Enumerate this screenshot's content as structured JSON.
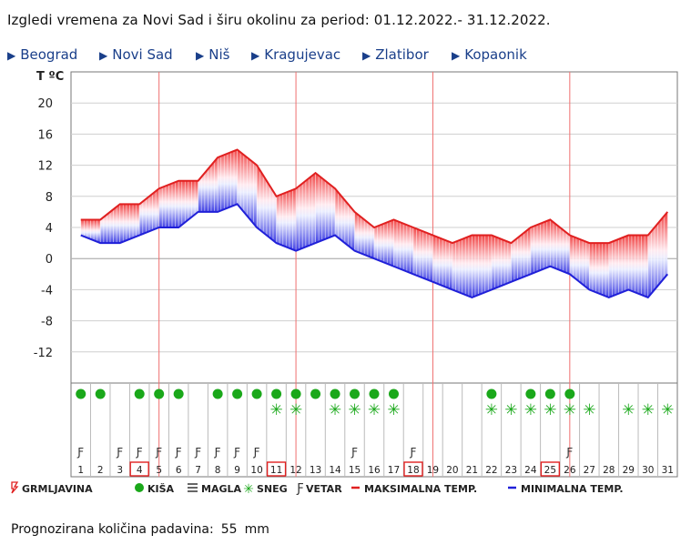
{
  "header": {
    "title": "Izgledi vremena za Novi Sad i širu okolinu za period: 01.12.2022.- 31.12.2022."
  },
  "nav": {
    "items": [
      {
        "label": "Beograd"
      },
      {
        "label": "Novi Sad"
      },
      {
        "label": "Niš"
      },
      {
        "label": "Kragujevac"
      },
      {
        "label": "Zlatibor"
      },
      {
        "label": "Kopaonik"
      }
    ]
  },
  "colors": {
    "max": "#e02020",
    "min": "#2020d8",
    "rain": "#1aa81a",
    "snow": "#1aa81a",
    "grid": "#777777",
    "sunday_box": "#e02020",
    "week_line": "#f07070"
  },
  "chart_data": {
    "type": "line",
    "title": "",
    "ylabel": "T ºC",
    "ylim": [
      -16,
      24
    ],
    "yticks": [
      20,
      16,
      12,
      8,
      4,
      0,
      -4,
      -8,
      -12
    ],
    "x": [
      1,
      2,
      3,
      4,
      5,
      6,
      7,
      8,
      9,
      10,
      11,
      12,
      13,
      14,
      15,
      16,
      17,
      18,
      19,
      20,
      21,
      22,
      23,
      24,
      25,
      26,
      27,
      28,
      29,
      30,
      31
    ],
    "series": [
      {
        "name": "MAKSIMALNA TEMP.",
        "values": [
          5,
          5,
          7,
          7,
          9,
          10,
          10,
          13,
          14,
          12,
          8,
          9,
          11,
          9,
          6,
          4,
          5,
          4,
          3,
          2,
          3,
          3,
          2,
          4,
          5,
          3,
          2,
          2,
          3,
          3,
          6
        ]
      },
      {
        "name": "MINIMALNA TEMP.",
        "values": [
          3,
          2,
          2,
          3,
          4,
          4,
          6,
          6,
          7,
          4,
          2,
          1,
          2,
          3,
          1,
          0,
          -1,
          -2,
          -3,
          -4,
          -5,
          -4,
          -3,
          -2,
          -1,
          -2,
          -4,
          -5,
          -4,
          -5,
          -2
        ]
      }
    ],
    "rain_days": [
      1,
      2,
      4,
      5,
      6,
      8,
      9,
      10,
      11,
      12,
      13,
      14,
      15,
      16,
      17,
      22,
      24,
      25,
      26
    ],
    "snow_days": [
      11,
      12,
      14,
      15,
      16,
      17,
      22,
      23,
      24,
      25,
      26,
      27,
      29,
      30,
      31
    ],
    "wind_days": [
      1,
      3,
      4,
      5,
      6,
      7,
      8,
      9,
      10,
      15,
      18,
      26
    ],
    "highlighted_days": [
      4,
      11,
      18,
      25
    ],
    "week_lines": [
      4.5,
      11.5,
      18.5,
      25.5
    ],
    "grid": true,
    "legend": {
      "position": "bottom",
      "items": [
        {
          "icon": "thunder-icon",
          "label": "GRMLJAVINA"
        },
        {
          "icon": "rain-icon",
          "label": "KIŠA"
        },
        {
          "icon": "fog-icon",
          "label": "MAGLA"
        },
        {
          "icon": "snow-icon",
          "label": "SNEG"
        },
        {
          "icon": "wind-icon",
          "label": "VETAR"
        },
        {
          "icon": "max-line-icon",
          "label": "MAKSIMALNA TEMP."
        },
        {
          "icon": "min-line-icon",
          "label": "MINIMALNA TEMP."
        }
      ]
    }
  },
  "footer": {
    "label": "Prognozirana količina padavina:",
    "amount": "55",
    "unit": "mm"
  }
}
